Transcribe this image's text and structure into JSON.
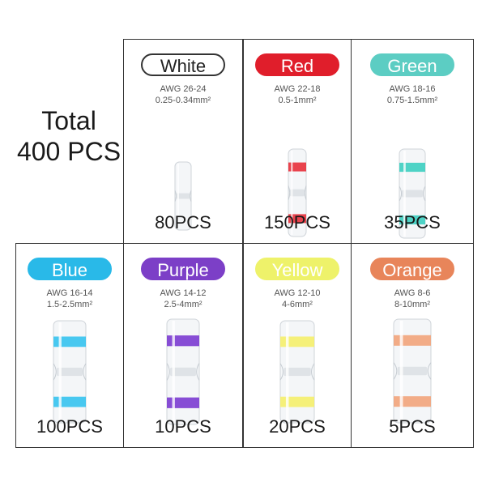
{
  "total": {
    "line1": "Total",
    "line2": "400 PCS"
  },
  "items": [
    {
      "color": "White",
      "awg": "AWG 26-24",
      "size": "0.25-0.34mm²",
      "count": "80PCS",
      "pill_bg": "#ffffff",
      "pill_border": "#333333",
      "pill_text": "#222222",
      "band": "#e8e8e8"
    },
    {
      "color": "Red",
      "awg": "AWG 22-18",
      "size": "0.5-1mm²",
      "count": "150PCS",
      "pill_bg": "#e01e2b",
      "pill_border": "#e01e2b",
      "pill_text": "#ffffff",
      "band": "#e8303a"
    },
    {
      "color": "Green",
      "awg": "AWG 18-16",
      "size": "0.75-1.5mm²",
      "count": "35PCS",
      "pill_bg": "#5ccdc3",
      "pill_border": "#5ccdc3",
      "pill_text": "#ffffff",
      "band": "#3ccfc0"
    },
    {
      "color": "Blue",
      "awg": "AWG 16-14",
      "size": "1.5-2.5mm²",
      "count": "100PCS",
      "pill_bg": "#29b9e8",
      "pill_border": "#29b9e8",
      "pill_text": "#ffffff",
      "band": "#35c3ee"
    },
    {
      "color": "Purple",
      "awg": "AWG 14-12",
      "size": "2.5-4mm²",
      "count": "10PCS",
      "pill_bg": "#7c3fc7",
      "pill_border": "#7c3fc7",
      "pill_text": "#ffffff",
      "band": "#7b3bd0"
    },
    {
      "color": "Yellow",
      "awg": "AWG 12-10",
      "size": "4-6mm²",
      "count": "20PCS",
      "pill_bg": "#eef26a",
      "pill_border": "#eef26a",
      "pill_text": "#ffffff",
      "band": "#f5ef6a"
    },
    {
      "color": "Orange",
      "awg": "AWG 8-6",
      "size": "8-10mm²",
      "count": "5PCS",
      "pill_bg": "#e8855a",
      "pill_border": "#e8855a",
      "pill_text": "#ffffff",
      "band": "#f2a47a"
    }
  ]
}
